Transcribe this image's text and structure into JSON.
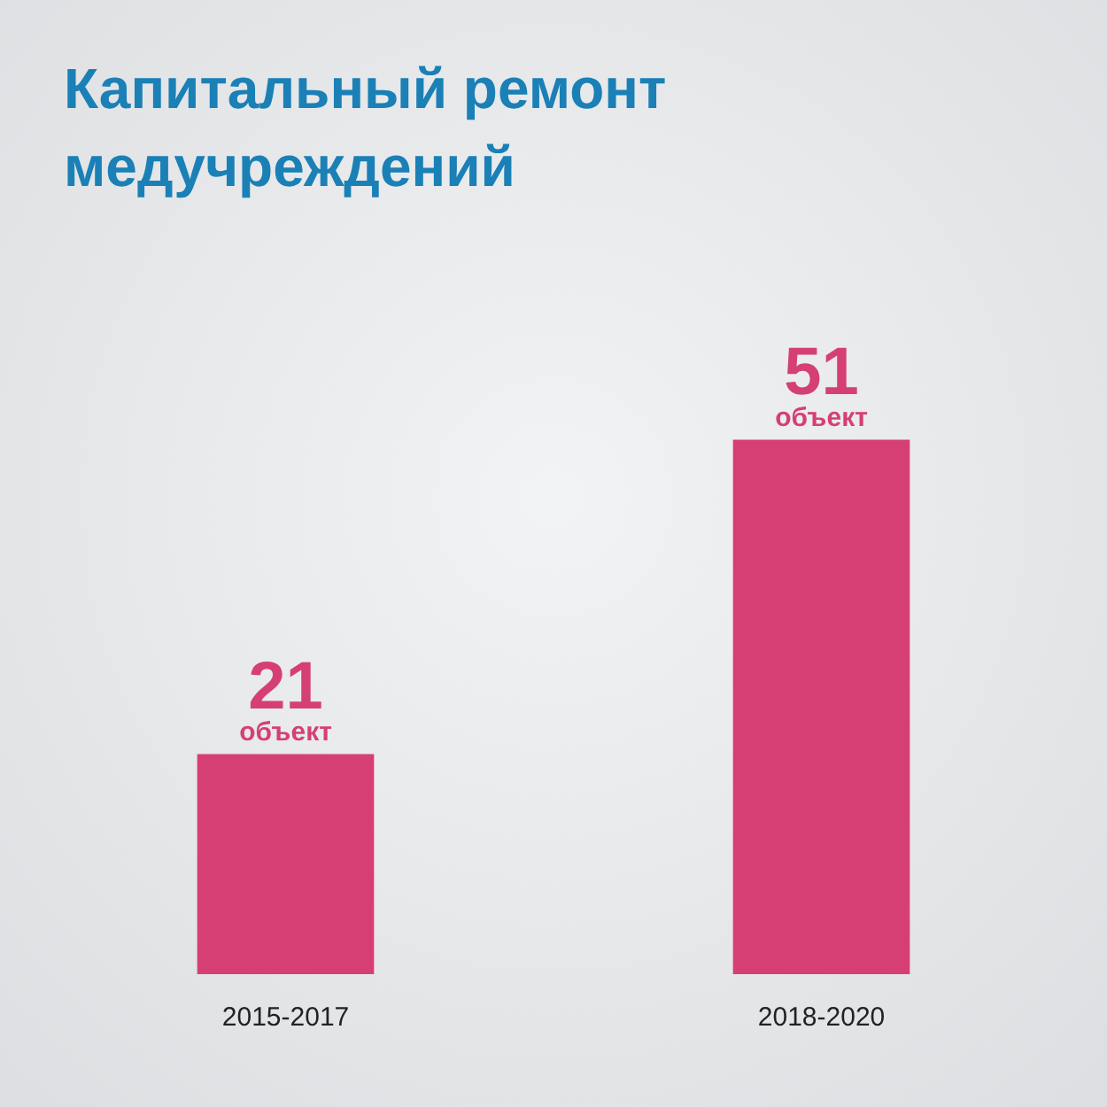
{
  "chart_data": {
    "type": "bar",
    "title": "Капитальный ремонт медучреждений",
    "categories": [
      "2015-2017",
      "2018-2020"
    ],
    "values": [
      21,
      51
    ],
    "color": "#d63f74",
    "data_labels": true,
    "annotations": [
      {
        "text": "объект",
        "x": "2015-2017",
        "y": 21
      },
      {
        "text": "объект",
        "x": "2018-2020",
        "y": 51
      }
    ],
    "grid": false,
    "legend": false
  }
}
